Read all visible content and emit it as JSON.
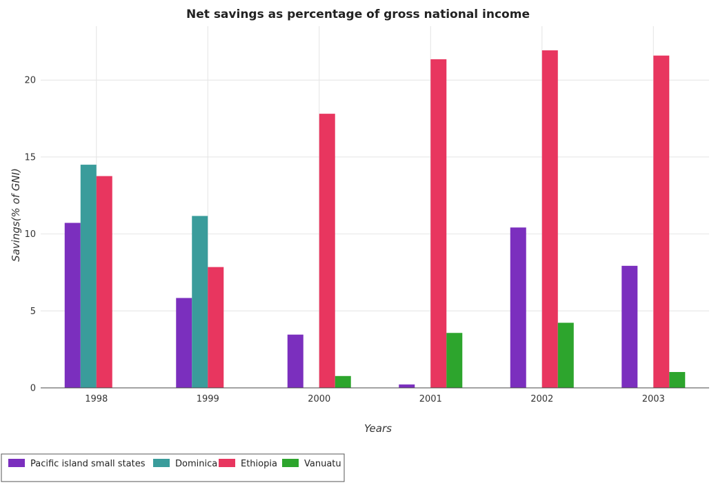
{
  "chart_data": {
    "type": "bar",
    "title": "Net savings as percentage of gross national income",
    "xlabel": "Years",
    "ylabel": "Savings(% of GNI)",
    "categories": [
      "1998",
      "1999",
      "2000",
      "2001",
      "2002",
      "2003"
    ],
    "ylim": [
      0,
      23.5
    ],
    "yticks": [
      "0",
      "5",
      "10",
      "15",
      "20"
    ],
    "grid": true,
    "legend_position": "bottom-left",
    "series": [
      {
        "name": "Pacific island small states",
        "color": "#7b2fbe",
        "values": [
          10.72,
          5.84,
          3.46,
          0.22,
          10.42,
          7.93
        ]
      },
      {
        "name": "Dominica",
        "color": "#3a9c9b",
        "values": [
          14.5,
          11.17,
          0,
          0,
          0,
          0
        ]
      },
      {
        "name": "Ethiopia",
        "color": "#e8365f",
        "values": [
          13.76,
          7.85,
          17.81,
          21.35,
          21.93,
          21.59
        ]
      },
      {
        "name": "Vanuatu",
        "color": "#2da52d",
        "values": [
          0,
          0,
          0.77,
          3.57,
          4.23,
          1.03
        ]
      }
    ]
  }
}
